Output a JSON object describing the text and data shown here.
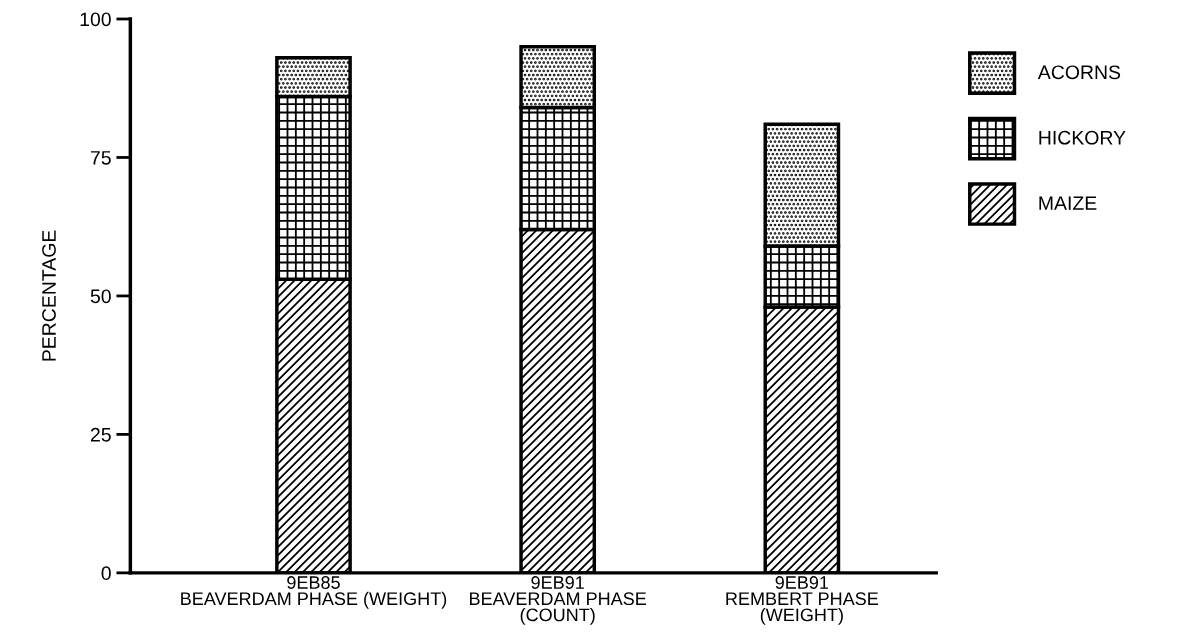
{
  "chart_data": {
    "type": "bar",
    "stacked": true,
    "ylabel": "PERCENTAGE",
    "categories": [
      "9EB85\nBEAVERDAM PHASE (WEIGHT)",
      "9EB91\nBEAVERDAM PHASE\n(COUNT)",
      "9EB91\nREMBERT PHASE\n(WEIGHT)"
    ],
    "series": [
      {
        "name": "MAIZE",
        "color": "#000000",
        "values": [
          53,
          62,
          48
        ]
      },
      {
        "name": "HICKORY",
        "color": "#000000",
        "values": [
          33,
          22,
          11
        ]
      },
      {
        "name": "ACORNS",
        "color": "#000000",
        "values": [
          7,
          11,
          22
        ]
      }
    ],
    "ylim": [
      0,
      100
    ],
    "yticks": [
      0,
      25,
      50,
      75,
      100
    ],
    "grid": false,
    "legend": "right"
  }
}
